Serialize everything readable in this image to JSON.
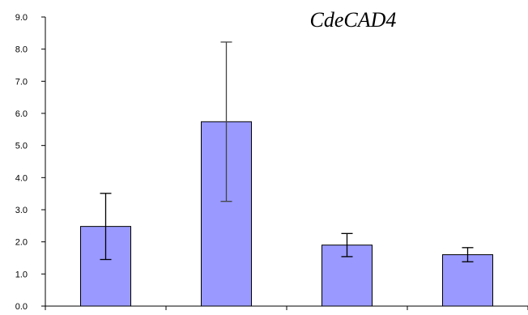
{
  "chart_data": {
    "type": "bar",
    "title": "CdeCAD4",
    "xlabel": "",
    "ylabel": "",
    "categories": [
      "",
      "",
      "",
      ""
    ],
    "values": [
      2.48,
      5.74,
      1.9,
      1.6
    ],
    "errors": [
      1.03,
      2.48,
      0.36,
      0.22
    ],
    "ylim": [
      0,
      9
    ],
    "yticks": [
      "0.0",
      "1.0",
      "2.0",
      "3.0",
      "4.0",
      "5.0",
      "6.0",
      "7.0",
      "8.0",
      "9.0"
    ],
    "grid": false,
    "legend": "none",
    "colors": {
      "bar_fill": "#9999ff",
      "bar_stroke": "#000000",
      "axis": "#000000",
      "error_bar_1": "#000000",
      "error_bar_2": "#444444"
    }
  }
}
